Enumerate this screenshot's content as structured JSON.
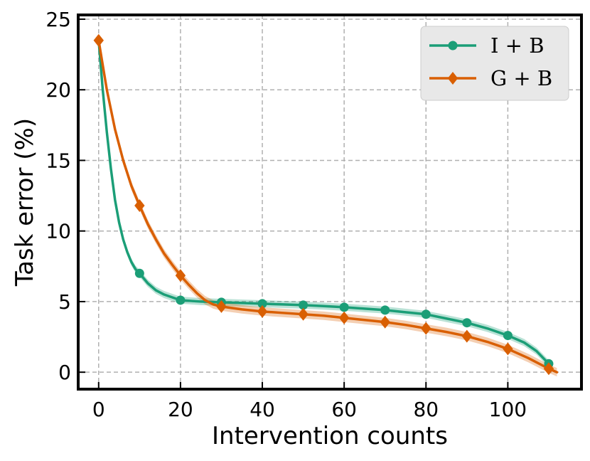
{
  "chart_data": {
    "type": "line",
    "title": "",
    "xlabel": "Intervention counts",
    "ylabel": "Task error (%)",
    "xlim": [
      -5,
      118
    ],
    "ylim": [
      -1.2,
      25.3
    ],
    "xticks": [
      0,
      20,
      40,
      60,
      80,
      100
    ],
    "yticks": [
      0,
      5,
      10,
      15,
      20,
      25
    ],
    "grid": true,
    "legend_position": "top-right",
    "series": [
      {
        "name": "I + B",
        "color": "#1b9e77",
        "marker": "circle",
        "marker_x": [
          10,
          20,
          30,
          40,
          50,
          60,
          70,
          80,
          90,
          100,
          110
        ],
        "marker_y": [
          7.0,
          5.1,
          4.95,
          4.85,
          4.75,
          4.6,
          4.4,
          4.1,
          3.5,
          2.6,
          0.6
        ],
        "curve_x": [
          0,
          1,
          2,
          3,
          4,
          5,
          6,
          7,
          8,
          9,
          10,
          12,
          14,
          16,
          18,
          20,
          25,
          30,
          35,
          40,
          45,
          50,
          55,
          60,
          65,
          70,
          75,
          80,
          85,
          90,
          95,
          100,
          104,
          107,
          110
        ],
        "curve_y": [
          23.5,
          20.0,
          17.0,
          14.4,
          12.2,
          10.6,
          9.4,
          8.5,
          7.8,
          7.3,
          7.0,
          6.3,
          5.8,
          5.5,
          5.3,
          5.1,
          5.0,
          4.95,
          4.9,
          4.85,
          4.8,
          4.75,
          4.68,
          4.6,
          4.5,
          4.4,
          4.25,
          4.1,
          3.8,
          3.5,
          3.1,
          2.6,
          2.1,
          1.5,
          0.6
        ],
        "band": 0.25
      },
      {
        "name": "G + B",
        "color": "#d95f02",
        "marker": "diamond",
        "marker_x": [
          0,
          10,
          20,
          30,
          40,
          50,
          60,
          70,
          80,
          90,
          100,
          110
        ],
        "marker_y": [
          23.5,
          11.8,
          6.85,
          4.65,
          4.3,
          4.1,
          3.85,
          3.55,
          3.1,
          2.55,
          1.65,
          0.25
        ],
        "curve_x": [
          0,
          2,
          4,
          6,
          8,
          10,
          12,
          14,
          16,
          18,
          20,
          22,
          24,
          26,
          28,
          30,
          35,
          40,
          45,
          50,
          55,
          60,
          65,
          70,
          75,
          80,
          85,
          90,
          95,
          100,
          105,
          110,
          112
        ],
        "curve_y": [
          23.5,
          20.0,
          17.2,
          15.0,
          13.2,
          11.8,
          10.5,
          9.4,
          8.4,
          7.6,
          6.85,
          6.2,
          5.6,
          5.1,
          4.8,
          4.65,
          4.45,
          4.3,
          4.2,
          4.1,
          4.0,
          3.85,
          3.7,
          3.55,
          3.35,
          3.1,
          2.85,
          2.55,
          2.15,
          1.65,
          1.0,
          0.25,
          0.0
        ],
        "band": 0.3
      }
    ]
  }
}
